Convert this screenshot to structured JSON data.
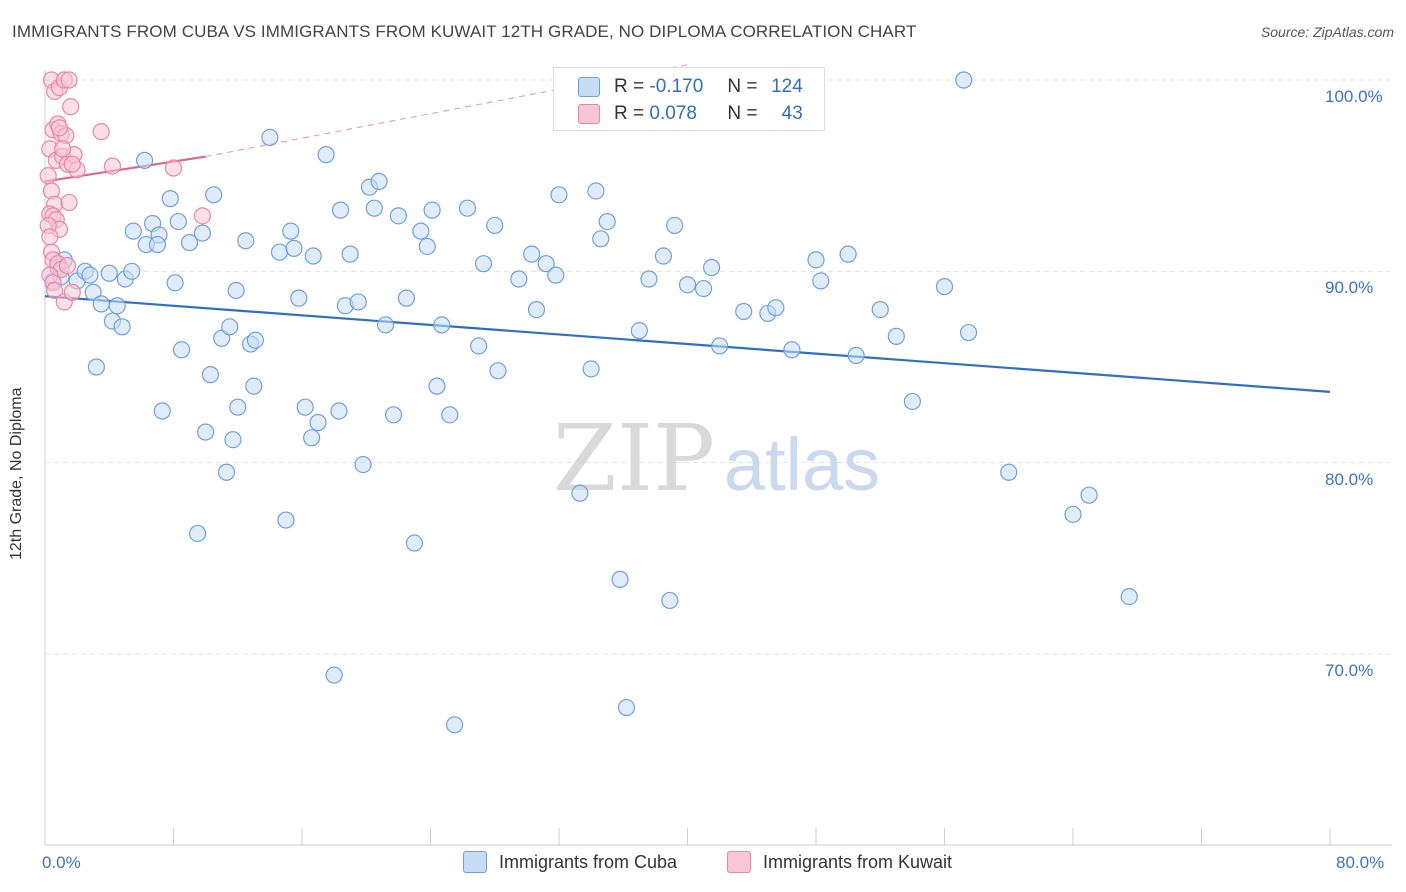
{
  "header": {
    "title": "IMMIGRANTS FROM CUBA VS IMMIGRANTS FROM KUWAIT 12TH GRADE, NO DIPLOMA CORRELATION CHART",
    "source": "Source: ZipAtlas.com"
  },
  "legend": {
    "r_label": "R =",
    "n_label": "N =",
    "rows": [
      {
        "r": "-0.170",
        "n": "124",
        "color": "#a9c8f0"
      },
      {
        "r": "0.078",
        "n": "43",
        "color": "#f5b7cc"
      }
    ]
  },
  "watermark": {
    "zip": "ZIP",
    "atlas": "atlas"
  },
  "chart_data": {
    "type": "scatter",
    "xlabel": "",
    "ylabel": "12th Grade, No Diploma",
    "xlim": [
      0,
      80
    ],
    "ylim": [
      60,
      101.5
    ],
    "x_tick_labels": [
      "0.0%",
      "80.0%"
    ],
    "y_ticks": [
      70,
      80,
      90,
      100
    ],
    "y_tick_labels": [
      "70.0%",
      "80.0%",
      "90.0%",
      "100.0%"
    ],
    "grid": true,
    "series": [
      {
        "name": "Immigrants from Cuba",
        "color": "#6fa0dd",
        "fill": "#c7dcf5",
        "trend": {
          "x": [
            0,
            80
          ],
          "y": [
            88.7,
            83.7
          ]
        },
        "points": [
          [
            0.5,
            89.5
          ],
          [
            0.8,
            90.2
          ],
          [
            1.0,
            89.7
          ],
          [
            1.2,
            90.6
          ],
          [
            2.0,
            89.5
          ],
          [
            2.5,
            90.0
          ],
          [
            3.0,
            88.9
          ],
          [
            3.5,
            88.3
          ],
          [
            2.8,
            89.8
          ],
          [
            3.2,
            85.0
          ],
          [
            4.0,
            89.9
          ],
          [
            4.2,
            87.4
          ],
          [
            4.5,
            88.2
          ],
          [
            4.8,
            87.1
          ],
          [
            5.0,
            89.6
          ],
          [
            5.4,
            90.0
          ],
          [
            5.5,
            92.1
          ],
          [
            6.2,
            95.8
          ],
          [
            6.3,
            91.4
          ],
          [
            6.7,
            92.5
          ],
          [
            7.1,
            91.9
          ],
          [
            7.0,
            91.4
          ],
          [
            7.3,
            82.7
          ],
          [
            7.8,
            93.8
          ],
          [
            8.1,
            89.4
          ],
          [
            8.3,
            92.6
          ],
          [
            8.5,
            85.9
          ],
          [
            9.0,
            91.5
          ],
          [
            9.5,
            76.3
          ],
          [
            9.8,
            92.0
          ],
          [
            10.0,
            81.6
          ],
          [
            10.3,
            84.6
          ],
          [
            10.5,
            94.0
          ],
          [
            11.0,
            86.5
          ],
          [
            11.3,
            79.5
          ],
          [
            11.5,
            87.1
          ],
          [
            11.7,
            81.2
          ],
          [
            11.9,
            89.0
          ],
          [
            12.0,
            82.9
          ],
          [
            12.5,
            91.6
          ],
          [
            12.8,
            86.2
          ],
          [
            13.0,
            84.0
          ],
          [
            13.1,
            86.4
          ],
          [
            14.0,
            97.0
          ],
          [
            14.6,
            91.0
          ],
          [
            15.0,
            77.0
          ],
          [
            15.3,
            92.1
          ],
          [
            15.5,
            91.2
          ],
          [
            15.8,
            88.6
          ],
          [
            16.2,
            82.9
          ],
          [
            16.6,
            81.3
          ],
          [
            16.7,
            90.8
          ],
          [
            17.0,
            82.1
          ],
          [
            17.5,
            96.1
          ],
          [
            18.0,
            68.9
          ],
          [
            18.3,
            82.7
          ],
          [
            18.4,
            93.2
          ],
          [
            18.7,
            88.2
          ],
          [
            19.0,
            90.9
          ],
          [
            19.5,
            88.4
          ],
          [
            19.8,
            79.9
          ],
          [
            20.2,
            94.4
          ],
          [
            20.5,
            93.3
          ],
          [
            20.8,
            94.7
          ],
          [
            21.2,
            87.2
          ],
          [
            21.7,
            82.5
          ],
          [
            22.0,
            92.9
          ],
          [
            22.5,
            88.6
          ],
          [
            23.0,
            75.8
          ],
          [
            23.4,
            92.1
          ],
          [
            23.8,
            91.3
          ],
          [
            24.1,
            93.2
          ],
          [
            24.4,
            84.0
          ],
          [
            24.7,
            87.2
          ],
          [
            25.2,
            82.5
          ],
          [
            25.5,
            66.3
          ],
          [
            26.3,
            93.3
          ],
          [
            27.0,
            86.1
          ],
          [
            27.3,
            90.4
          ],
          [
            28.0,
            92.4
          ],
          [
            28.2,
            84.8
          ],
          [
            29.5,
            89.6
          ],
          [
            30.3,
            90.9
          ],
          [
            30.6,
            88.0
          ],
          [
            31.2,
            90.4
          ],
          [
            31.8,
            89.8
          ],
          [
            32.0,
            94.0
          ],
          [
            33.3,
            78.4
          ],
          [
            34.0,
            84.9
          ],
          [
            34.3,
            94.2
          ],
          [
            34.6,
            91.7
          ],
          [
            35.0,
            92.6
          ],
          [
            35.8,
            73.9
          ],
          [
            36.2,
            67.2
          ],
          [
            37.0,
            86.9
          ],
          [
            37.6,
            89.6
          ],
          [
            38.5,
            90.8
          ],
          [
            38.9,
            72.8
          ],
          [
            39.2,
            92.4
          ],
          [
            40.0,
            89.3
          ],
          [
            41.0,
            89.1
          ],
          [
            41.5,
            90.2
          ],
          [
            42.0,
            86.1
          ],
          [
            43.5,
            87.9
          ],
          [
            45.0,
            87.8
          ],
          [
            45.5,
            88.1
          ],
          [
            46.5,
            85.9
          ],
          [
            48.0,
            90.6
          ],
          [
            48.3,
            89.5
          ],
          [
            50.0,
            90.9
          ],
          [
            50.5,
            85.6
          ],
          [
            52.0,
            88.0
          ],
          [
            53.0,
            86.6
          ],
          [
            54.0,
            83.2
          ],
          [
            56.0,
            89.2
          ],
          [
            57.2,
            100.0
          ],
          [
            57.5,
            86.8
          ],
          [
            60.0,
            79.5
          ],
          [
            64.0,
            77.3
          ],
          [
            65.0,
            78.3
          ],
          [
            67.5,
            73.0
          ]
        ]
      },
      {
        "name": "Immigrants from Kuwait",
        "color": "#ea85a6",
        "fill": "#f8c6d6",
        "trend": {
          "x": [
            0,
            10
          ],
          "y": [
            94.7,
            96.0
          ]
        },
        "trend_ext": {
          "x": [
            10,
            40
          ],
          "y": [
            96.0,
            100.8
          ]
        },
        "points": [
          [
            0.4,
            100.0
          ],
          [
            0.6,
            99.4
          ],
          [
            0.9,
            99.6
          ],
          [
            1.2,
            100.0
          ],
          [
            1.5,
            100.0
          ],
          [
            1.6,
            98.6
          ],
          [
            0.5,
            97.4
          ],
          [
            0.8,
            97.7
          ],
          [
            1.0,
            97.2
          ],
          [
            1.3,
            97.1
          ],
          [
            0.3,
            96.4
          ],
          [
            0.7,
            95.8
          ],
          [
            1.1,
            96.0
          ],
          [
            1.4,
            95.6
          ],
          [
            1.8,
            96.1
          ],
          [
            2.0,
            95.3
          ],
          [
            0.2,
            95.0
          ],
          [
            0.4,
            94.2
          ],
          [
            0.6,
            93.5
          ],
          [
            1.5,
            93.6
          ],
          [
            0.3,
            93.0
          ],
          [
            0.5,
            92.9
          ],
          [
            0.7,
            92.7
          ],
          [
            0.9,
            92.2
          ],
          [
            0.2,
            92.4
          ],
          [
            0.3,
            91.8
          ],
          [
            0.4,
            91.0
          ],
          [
            0.5,
            90.6
          ],
          [
            0.8,
            90.4
          ],
          [
            1.0,
            90.1
          ],
          [
            1.4,
            90.3
          ],
          [
            0.3,
            89.8
          ],
          [
            0.5,
            89.4
          ],
          [
            0.6,
            89.0
          ],
          [
            1.2,
            88.4
          ],
          [
            1.7,
            88.9
          ],
          [
            3.5,
            97.3
          ],
          [
            4.2,
            95.5
          ],
          [
            8.0,
            95.4
          ],
          [
            9.8,
            92.9
          ],
          [
            1.7,
            95.6
          ],
          [
            0.9,
            97.5
          ],
          [
            1.1,
            96.4
          ]
        ]
      }
    ]
  }
}
